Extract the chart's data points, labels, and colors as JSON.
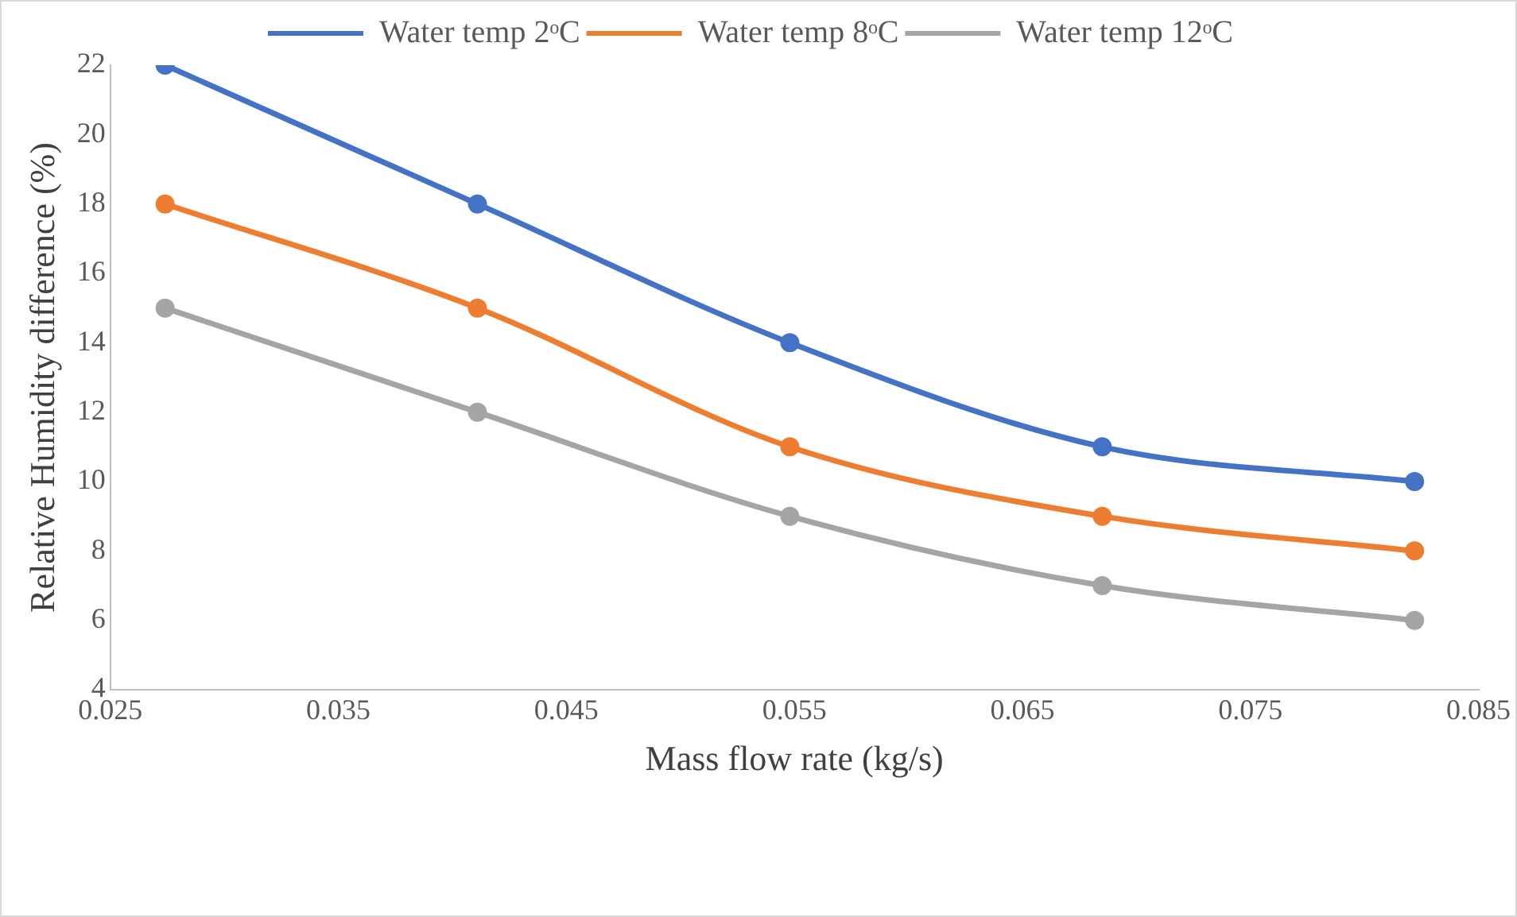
{
  "chart_data": {
    "type": "line",
    "xlabel": "Mass flow rate (kg/s)",
    "ylabel": "Relative Humidity difference (%)",
    "x": [
      0.0274,
      0.0411,
      0.0548,
      0.0685,
      0.0822
    ],
    "series": [
      {
        "name": "Water temp 2ᵒC",
        "color": "#4472c4",
        "values": [
          22,
          18,
          14,
          11,
          10
        ]
      },
      {
        "name": "Water temp 8ᵒC",
        "color": "#ed7d31",
        "values": [
          18,
          15,
          11,
          9,
          8
        ]
      },
      {
        "name": "Water temp 12ᵒC",
        "color": "#a5a5a5",
        "values": [
          15,
          12,
          9,
          7,
          6
        ]
      }
    ],
    "xlim": [
      0.025,
      0.085
    ],
    "xticks": [
      0.025,
      0.035,
      0.045,
      0.055,
      0.065,
      0.075,
      0.085
    ],
    "ylim": [
      4,
      22
    ],
    "yticks": [
      4,
      6,
      8,
      10,
      12,
      14,
      16,
      18,
      20,
      22
    ],
    "grid": false,
    "legend": "top",
    "marker": "circle",
    "line_style": "solid"
  }
}
